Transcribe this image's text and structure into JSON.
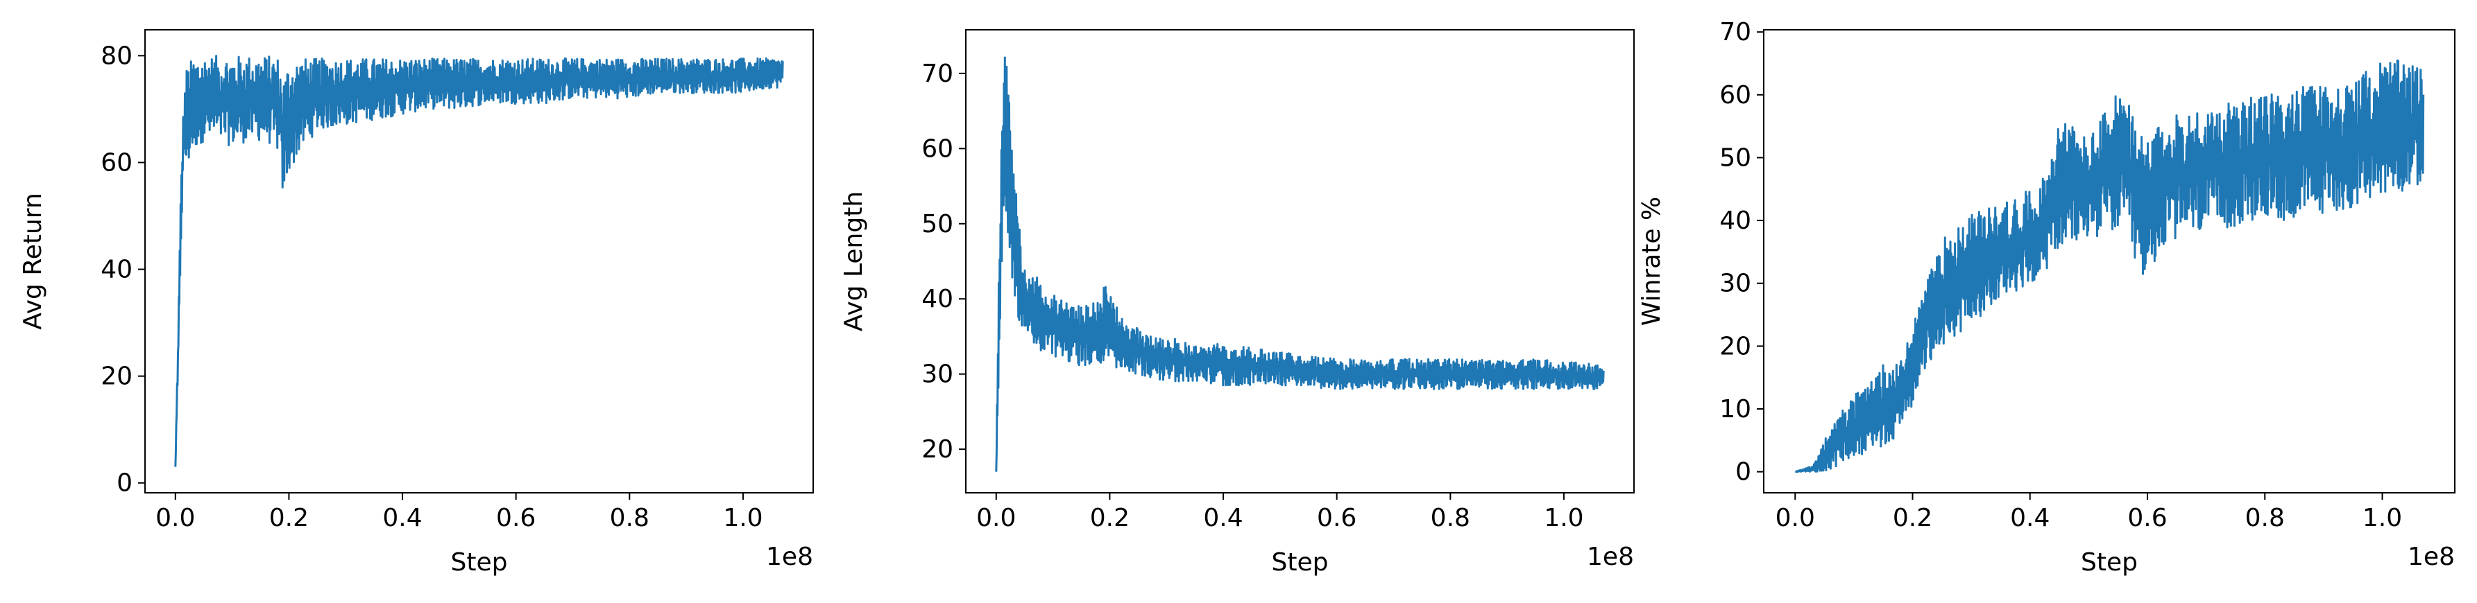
{
  "chart_data": [
    {
      "type": "line",
      "xlabel": "Step",
      "ylabel": "Avg Return",
      "x_offset_label": "1e8",
      "xlim": [
        -0.0535,
        1.1235
      ],
      "ylim": [
        -1.85,
        84.85
      ],
      "xticks": [
        0.0,
        0.2,
        0.4,
        0.6,
        0.8,
        1.0
      ],
      "xtick_labels": [
        "0.0",
        "0.2",
        "0.4",
        "0.6",
        "0.8",
        "1.0"
      ],
      "yticks": [
        0,
        20,
        40,
        60,
        80
      ],
      "ytick_labels": [
        "0",
        "20",
        "40",
        "60",
        "80"
      ],
      "series": [
        {
          "color": "#1f77b4",
          "x": [
            0.0,
            0.005,
            0.01,
            0.015,
            0.02,
            0.03,
            0.04,
            0.05,
            0.07,
            0.1,
            0.13,
            0.16,
            0.18,
            0.19,
            0.2,
            0.22,
            0.25,
            0.3,
            0.35,
            0.4,
            0.45,
            0.5,
            0.55,
            0.6,
            0.65,
            0.7,
            0.75,
            0.8,
            0.85,
            0.9,
            0.95,
            1.0,
            1.05,
            1.07
          ],
          "high": [
            3,
            30,
            58,
            73,
            78,
            79.5,
            80,
            80,
            80,
            80,
            80,
            80,
            80,
            76,
            79,
            79.5,
            79.5,
            79.5,
            79.5,
            79.5,
            79.5,
            79.5,
            79.5,
            79.5,
            79.5,
            79.5,
            79.5,
            79.5,
            79.5,
            79.5,
            79.5,
            79.5,
            79.5,
            79.5
          ],
          "low": [
            3,
            20,
            45,
            60,
            58,
            62,
            63,
            64,
            64,
            63,
            64,
            64,
            62,
            53,
            58,
            62,
            66,
            67,
            68,
            69,
            70,
            70,
            71,
            71,
            71,
            72,
            72,
            72,
            73,
            73,
            73,
            73,
            74,
            74
          ]
        }
      ]
    },
    {
      "type": "line",
      "xlabel": "Step",
      "ylabel": "Avg Length",
      "x_offset_label": "1e8",
      "xlim": [
        -0.0535,
        1.1235
      ],
      "ylim": [
        14.2,
        75.8
      ],
      "xticks": [
        0.0,
        0.2,
        0.4,
        0.6,
        0.8,
        1.0
      ],
      "xtick_labels": [
        "0.0",
        "0.2",
        "0.4",
        "0.6",
        "0.8",
        "1.0"
      ],
      "yticks": [
        20,
        30,
        40,
        50,
        60,
        70
      ],
      "ytick_labels": [
        "20",
        "30",
        "40",
        "50",
        "60",
        "70"
      ],
      "series": [
        {
          "color": "#1f77b4",
          "x": [
            0.0,
            0.005,
            0.01,
            0.015,
            0.02,
            0.03,
            0.04,
            0.05,
            0.07,
            0.1,
            0.15,
            0.18,
            0.19,
            0.22,
            0.25,
            0.3,
            0.35,
            0.4,
            0.5,
            0.6,
            0.7,
            0.8,
            0.9,
            1.0,
            1.07
          ],
          "high": [
            17,
            50,
            70,
            73,
            70,
            60,
            50,
            45,
            43,
            41,
            39,
            41,
            42,
            38,
            36,
            35,
            34,
            34,
            33,
            32,
            32,
            32,
            32,
            32,
            31
          ],
          "low": [
            17,
            25,
            45,
            55,
            48,
            40,
            37,
            35,
            33,
            32,
            31,
            31,
            31,
            30,
            30,
            29,
            29,
            28.5,
            28.5,
            28,
            28,
            28,
            28,
            28,
            28
          ]
        }
      ]
    },
    {
      "type": "line",
      "xlabel": "Step",
      "ylabel": "Winrate %",
      "x_offset_label": "1e8",
      "xlim": [
        -0.0535,
        1.1235
      ],
      "ylim": [
        -3.35,
        70.35
      ],
      "xticks": [
        0.0,
        0.2,
        0.4,
        0.6,
        0.8,
        1.0
      ],
      "xtick_labels": [
        "0.0",
        "0.2",
        "0.4",
        "0.6",
        "0.8",
        "1.0"
      ],
      "yticks": [
        0,
        10,
        20,
        30,
        40,
        50,
        60,
        70
      ],
      "ytick_labels": [
        "0",
        "10",
        "20",
        "30",
        "40",
        "50",
        "60",
        "70"
      ],
      "series": [
        {
          "color": "#1f77b4",
          "x": [
            0.0,
            0.03,
            0.05,
            0.08,
            0.1,
            0.12,
            0.15,
            0.18,
            0.2,
            0.22,
            0.25,
            0.28,
            0.3,
            0.33,
            0.36,
            0.4,
            0.43,
            0.45,
            0.5,
            0.53,
            0.55,
            0.57,
            0.58,
            0.6,
            0.62,
            0.65,
            0.7,
            0.75,
            0.8,
            0.85,
            0.9,
            0.95,
            1.0,
            1.05,
            1.07
          ],
          "high": [
            0,
            1,
            5,
            10,
            12,
            14,
            17,
            18,
            23,
            30,
            37,
            40,
            41,
            42,
            43,
            45,
            48,
            57,
            53,
            58,
            62,
            58,
            55,
            53,
            55,
            57,
            58,
            59,
            60,
            61,
            62,
            62,
            66,
            65,
            64
          ],
          "low": [
            0,
            0,
            0,
            1,
            2,
            3,
            4,
            6,
            10,
            16,
            20,
            22,
            24,
            25,
            28,
            30,
            32,
            35,
            37,
            38,
            38,
            37,
            31,
            31,
            35,
            37,
            38,
            39,
            40,
            40,
            41,
            42,
            44,
            45,
            46
          ]
        }
      ]
    }
  ]
}
